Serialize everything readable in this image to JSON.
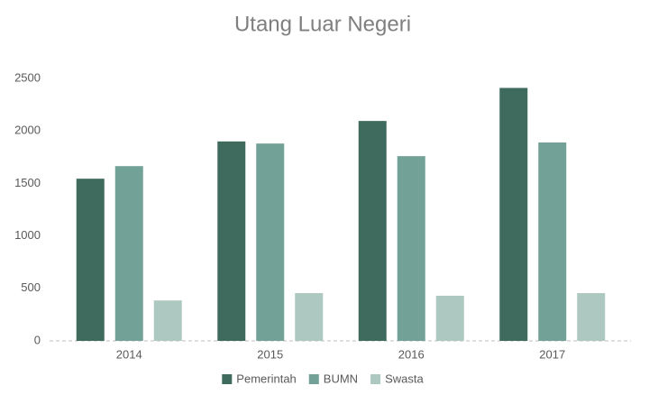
{
  "chart_data": {
    "type": "bar",
    "title": "Utang Luar Negeri",
    "categories": [
      "2014",
      "2015",
      "2016",
      "2017"
    ],
    "series": [
      {
        "name": "Pemerintah",
        "color": "#3e6b5d",
        "values": [
          1545,
          1900,
          2095,
          2410
        ]
      },
      {
        "name": "BUMN",
        "color": "#72a198",
        "values": [
          1665,
          1880,
          1760,
          1890
        ]
      },
      {
        "name": "Swasta",
        "color": "#adc8c1",
        "values": [
          385,
          455,
          430,
          455
        ]
      }
    ],
    "ylim": [
      0,
      2500
    ],
    "yticks": [
      0,
      500,
      1000,
      1500,
      2000,
      2500
    ],
    "grid": false,
    "legend": "bottom"
  }
}
